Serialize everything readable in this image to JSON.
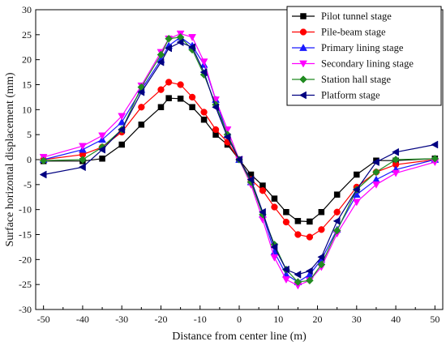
{
  "chart_data": {
    "type": "line",
    "xlabel": "Distance from center line (m)",
    "ylabel": "Surface horizontal displacement (mm)",
    "xlim": [
      -52,
      52
    ],
    "ylim": [
      -30,
      30
    ],
    "xticks": [
      -50,
      -40,
      -30,
      -20,
      -10,
      0,
      10,
      20,
      30,
      40,
      50
    ],
    "yticks": [
      -30,
      -25,
      -20,
      -15,
      -10,
      -5,
      0,
      5,
      10,
      15,
      20,
      25,
      30
    ],
    "grid": false,
    "legend_position": "top-right",
    "series": [
      {
        "name": "Pilot tunnel stage",
        "color": "#000000",
        "marker": "square",
        "points": [
          [
            -50,
            -0.3
          ],
          [
            -40,
            -0.3
          ],
          [
            -35,
            0.2
          ],
          [
            -30,
            3.0
          ],
          [
            -25,
            7.0
          ],
          [
            -20,
            10.5
          ],
          [
            -18,
            12.3
          ],
          [
            -15,
            12.2
          ],
          [
            -12,
            10.5
          ],
          [
            -9,
            8.0
          ],
          [
            -6,
            5.0
          ],
          [
            -3,
            3.0
          ],
          [
            0,
            0
          ],
          [
            3,
            -3.0
          ],
          [
            6,
            -5.2
          ],
          [
            9,
            -7.8
          ],
          [
            12,
            -10.5
          ],
          [
            15,
            -12.3
          ],
          [
            18,
            -12.4
          ],
          [
            21,
            -10.5
          ],
          [
            25,
            -7.0
          ],
          [
            30,
            -3.0
          ],
          [
            35,
            -0.2
          ],
          [
            40,
            -0.2
          ],
          [
            50,
            0.2
          ]
        ]
      },
      {
        "name": "Pile-beam stage",
        "color": "#ff0000",
        "marker": "circle",
        "points": [
          [
            -50,
            0
          ],
          [
            -40,
            1.0
          ],
          [
            -35,
            2.5
          ],
          [
            -30,
            5.5
          ],
          [
            -25,
            10.5
          ],
          [
            -20,
            14.0
          ],
          [
            -18,
            15.5
          ],
          [
            -15,
            15.0
          ],
          [
            -12,
            12.5
          ],
          [
            -9,
            9.5
          ],
          [
            -6,
            6.0
          ],
          [
            -3,
            3.5
          ],
          [
            0,
            0
          ],
          [
            3,
            -4.0
          ],
          [
            6,
            -6.2
          ],
          [
            9,
            -9.5
          ],
          [
            12,
            -12.5
          ],
          [
            15,
            -15.0
          ],
          [
            18,
            -15.5
          ],
          [
            21,
            -14.0
          ],
          [
            25,
            -10.5
          ],
          [
            30,
            -5.5
          ],
          [
            35,
            -2.5
          ],
          [
            40,
            -1.0
          ],
          [
            50,
            0
          ]
        ]
      },
      {
        "name": "Primary lining stage",
        "color": "#1a1aff",
        "marker": "triangle-up",
        "points": [
          [
            -50,
            0
          ],
          [
            -40,
            2.0
          ],
          [
            -35,
            4.0
          ],
          [
            -30,
            7.5
          ],
          [
            -25,
            14.0
          ],
          [
            -20,
            20.0
          ],
          [
            -18,
            22.8
          ],
          [
            -15,
            24.5
          ],
          [
            -12,
            22.8
          ],
          [
            -9,
            19.0
          ],
          [
            -6,
            12.0
          ],
          [
            -3,
            5.0
          ],
          [
            0,
            0
          ],
          [
            3,
            -4.5
          ],
          [
            6,
            -11.0
          ],
          [
            9,
            -18.5
          ],
          [
            12,
            -23.0
          ],
          [
            15,
            -24.5
          ],
          [
            18,
            -23.0
          ],
          [
            21,
            -20.0
          ],
          [
            25,
            -14.0
          ],
          [
            30,
            -7.0
          ],
          [
            35,
            -4.0
          ],
          [
            40,
            -2.0
          ],
          [
            50,
            0
          ]
        ]
      },
      {
        "name": "Secondary lining stage",
        "color": "#ff00ff",
        "marker": "triangle-down",
        "points": [
          [
            -50,
            0.5
          ],
          [
            -40,
            2.7
          ],
          [
            -35,
            4.8
          ],
          [
            -30,
            8.7
          ],
          [
            -25,
            14.8
          ],
          [
            -20,
            21.5
          ],
          [
            -18,
            24.2
          ],
          [
            -15,
            25.2
          ],
          [
            -12,
            24.5
          ],
          [
            -9,
            19.6
          ],
          [
            -6,
            12.0
          ],
          [
            -3,
            6.0
          ],
          [
            0,
            0
          ],
          [
            3,
            -5.0
          ],
          [
            6,
            -12.0
          ],
          [
            9,
            -19.6
          ],
          [
            12,
            -24.0
          ],
          [
            15,
            -25.2
          ],
          [
            18,
            -24.2
          ],
          [
            21,
            -21.5
          ],
          [
            25,
            -14.8
          ],
          [
            30,
            -8.5
          ],
          [
            35,
            -5.0
          ],
          [
            40,
            -2.7
          ],
          [
            50,
            -0.5
          ]
        ]
      },
      {
        "name": "Station hall stage",
        "color": "#228b22",
        "marker": "diamond",
        "points": [
          [
            -50,
            -0.2
          ],
          [
            -40,
            0
          ],
          [
            -35,
            2.5
          ],
          [
            -30,
            6.0
          ],
          [
            -25,
            14.5
          ],
          [
            -20,
            21.0
          ],
          [
            -18,
            24.2
          ],
          [
            -15,
            24.5
          ],
          [
            -12,
            22.0
          ],
          [
            -9,
            17.0
          ],
          [
            -6,
            11.0
          ],
          [
            -3,
            5.0
          ],
          [
            0,
            0
          ],
          [
            3,
            -4.5
          ],
          [
            6,
            -11.0
          ],
          [
            9,
            -17.0
          ],
          [
            12,
            -22.0
          ],
          [
            15,
            -24.5
          ],
          [
            18,
            -24.2
          ],
          [
            21,
            -21.0
          ],
          [
            25,
            -14.2
          ],
          [
            30,
            -6.0
          ],
          [
            35,
            -2.5
          ],
          [
            40,
            0
          ],
          [
            50,
            0.2
          ]
        ]
      },
      {
        "name": "Platform stage",
        "color": "#000080",
        "marker": "triangle-left",
        "points": [
          [
            -50,
            -3.0
          ],
          [
            -40,
            -1.5
          ],
          [
            -35,
            2.0
          ],
          [
            -30,
            6.0
          ],
          [
            -25,
            13.5
          ],
          [
            -20,
            19.5
          ],
          [
            -18,
            22.3
          ],
          [
            -15,
            23.5
          ],
          [
            -12,
            22.5
          ],
          [
            -9,
            17.5
          ],
          [
            -6,
            10.5
          ],
          [
            -3,
            4.5
          ],
          [
            0,
            0
          ],
          [
            3,
            -4.0
          ],
          [
            6,
            -10.5
          ],
          [
            9,
            -17.5
          ],
          [
            12,
            -22.0
          ],
          [
            15,
            -23.0
          ],
          [
            18,
            -22.3
          ],
          [
            21,
            -19.5
          ],
          [
            25,
            -12.3
          ],
          [
            30,
            -6.0
          ],
          [
            35,
            -0.5
          ],
          [
            40,
            1.5
          ],
          [
            50,
            3.0
          ]
        ]
      }
    ]
  }
}
